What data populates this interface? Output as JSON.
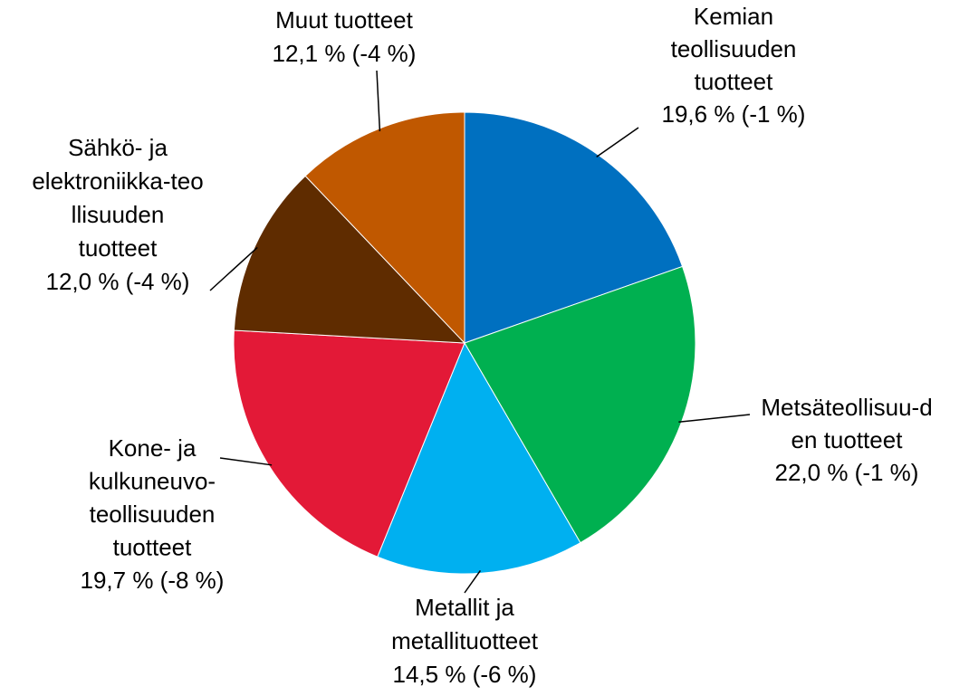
{
  "chart_data": {
    "type": "pie",
    "categories": [
      [
        "Kemian",
        "teollisuuden",
        "tuotteet"
      ],
      [
        "Metsäteollisuu-d",
        "en tuotteet"
      ],
      [
        "Metallit ja",
        "metallituotteet"
      ],
      [
        "Kone- ja",
        "kulkuneuvo-",
        "teollisuuden",
        "tuotteet"
      ],
      [
        "Sähkö- ja",
        "elektroniikka-teo",
        "llisuuden",
        "tuotteet"
      ],
      [
        "Muut tuotteet"
      ]
    ],
    "values": [
      19.6,
      22.0,
      14.5,
      19.7,
      12.0,
      12.1
    ],
    "value_labels": [
      "19,6 % (-1 %)",
      "22,0 % (-1 %)",
      "14,5 % (-6 %)",
      "19,7 % (-8 %)",
      "12,0 % (-4 %)",
      "12,1 % (-4 %)"
    ],
    "colors": [
      "#0070c0",
      "#00b050",
      "#00b0f0",
      "#e31937",
      "#5f2c00",
      "#c05800"
    ]
  }
}
